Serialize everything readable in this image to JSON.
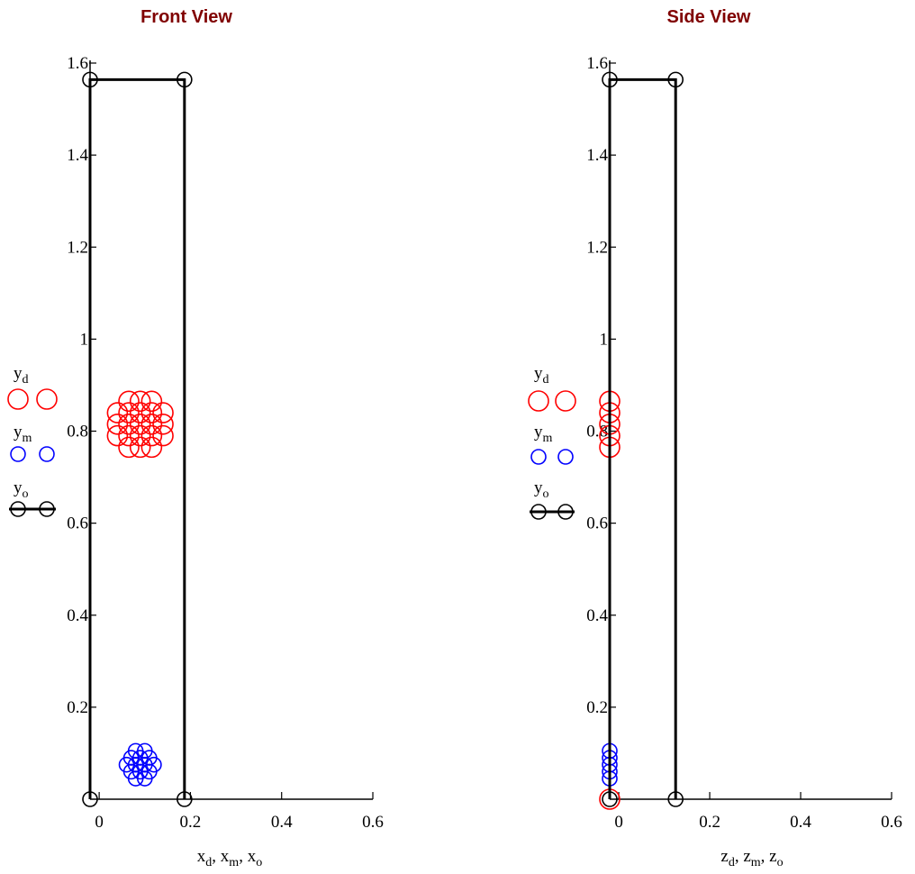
{
  "chart_data": [
    {
      "type": "scatter",
      "title": "Front View",
      "xlabel": "",
      "xlabel_parts": [
        [
          "x",
          "d"
        ],
        [
          "x",
          "m"
        ],
        [
          "x",
          "o"
        ]
      ],
      "ylabel": "",
      "xlim": [
        -0.02,
        0.6
      ],
      "ylim": [
        0,
        1.6
      ],
      "x_ticks": [
        0,
        0.2,
        0.4,
        0.6
      ],
      "x_tick_labels": [
        "0",
        "0.2",
        "0.4",
        "0.6"
      ],
      "y_ticks": [
        0.2,
        0.4,
        0.6,
        0.8,
        1,
        1.2,
        1.4,
        1.6
      ],
      "y_tick_labels": [
        "0.2",
        "0.4",
        "0.6",
        "0.8",
        "1",
        "1.2",
        "1.4",
        "1.6"
      ],
      "grid": false,
      "legend_position": "left",
      "series": [
        {
          "name": "y_d",
          "var": "y",
          "sub": "d",
          "color": "#ff0000",
          "marker": "circle",
          "line": false,
          "marker_size": "large",
          "points": [
            [
              0.065,
              0.865
            ],
            [
              0.09,
              0.865
            ],
            [
              0.115,
              0.865
            ],
            [
              0.04,
              0.84
            ],
            [
              0.065,
              0.84
            ],
            [
              0.09,
              0.84
            ],
            [
              0.115,
              0.84
            ],
            [
              0.14,
              0.84
            ],
            [
              0.04,
              0.815
            ],
            [
              0.065,
              0.815
            ],
            [
              0.09,
              0.815
            ],
            [
              0.115,
              0.815
            ],
            [
              0.14,
              0.815
            ],
            [
              0.04,
              0.79
            ],
            [
              0.065,
              0.79
            ],
            [
              0.09,
              0.79
            ],
            [
              0.115,
              0.79
            ],
            [
              0.14,
              0.79
            ],
            [
              0.065,
              0.765
            ],
            [
              0.09,
              0.765
            ],
            [
              0.115,
              0.765
            ]
          ]
        },
        {
          "name": "y_m",
          "var": "y",
          "sub": "m",
          "color": "#0000ff",
          "marker": "circle",
          "line": false,
          "marker_size": "small",
          "points": [
            [
              0.08,
              0.105
            ],
            [
              0.1,
              0.105
            ],
            [
              0.07,
              0.09
            ],
            [
              0.09,
              0.09
            ],
            [
              0.11,
              0.09
            ],
            [
              0.06,
              0.075
            ],
            [
              0.08,
              0.075
            ],
            [
              0.1,
              0.075
            ],
            [
              0.12,
              0.075
            ],
            [
              0.07,
              0.06
            ],
            [
              0.09,
              0.06
            ],
            [
              0.11,
              0.06
            ],
            [
              0.08,
              0.045
            ],
            [
              0.1,
              0.045
            ]
          ]
        },
        {
          "name": "y_o",
          "var": "y",
          "sub": "o",
          "color": "#000000",
          "marker": "circle",
          "line": true,
          "marker_size": "small",
          "points": [
            [
              -0.02,
              0
            ],
            [
              -0.02,
              1.564
            ],
            [
              0.187,
              1.564
            ],
            [
              0.187,
              0
            ]
          ]
        }
      ]
    },
    {
      "type": "scatter",
      "title": "Side View",
      "xlabel": "",
      "xlabel_parts": [
        [
          "z",
          "d"
        ],
        [
          "z",
          "m"
        ],
        [
          "z",
          "o"
        ]
      ],
      "ylabel": "",
      "xlim": [
        -0.02,
        0.6
      ],
      "ylim": [
        0,
        1.6
      ],
      "x_ticks": [
        0,
        0.2,
        0.4,
        0.6
      ],
      "x_tick_labels": [
        "0",
        "0.2",
        "0.4",
        "0.6"
      ],
      "y_ticks": [
        0.2,
        0.4,
        0.6,
        0.8,
        1,
        1.2,
        1.4,
        1.6
      ],
      "y_tick_labels": [
        "0.2",
        "0.4",
        "0.6",
        "0.8",
        "1",
        "1.2",
        "1.4",
        "1.6"
      ],
      "grid": false,
      "legend_position": "left",
      "series": [
        {
          "name": "y_d",
          "var": "y",
          "sub": "d",
          "color": "#ff0000",
          "marker": "circle",
          "line": false,
          "marker_size": "large",
          "points": [
            [
              -0.02,
              0.865
            ],
            [
              -0.02,
              0.84
            ],
            [
              -0.02,
              0.815
            ],
            [
              -0.02,
              0.79
            ],
            [
              -0.02,
              0.765
            ],
            [
              -0.02,
              0
            ]
          ]
        },
        {
          "name": "y_m",
          "var": "y",
          "sub": "m",
          "color": "#0000ff",
          "marker": "circle",
          "line": false,
          "marker_size": "small",
          "points": [
            [
              -0.02,
              0.105
            ],
            [
              -0.02,
              0.09
            ],
            [
              -0.02,
              0.075
            ],
            [
              -0.02,
              0.06
            ],
            [
              -0.02,
              0.045
            ]
          ]
        },
        {
          "name": "y_o",
          "var": "y",
          "sub": "o",
          "color": "#000000",
          "marker": "circle",
          "line": true,
          "marker_size": "small",
          "points": [
            [
              -0.02,
              0
            ],
            [
              -0.02,
              1.564
            ],
            [
              0.125,
              1.564
            ],
            [
              0.125,
              0
            ]
          ]
        }
      ]
    }
  ]
}
